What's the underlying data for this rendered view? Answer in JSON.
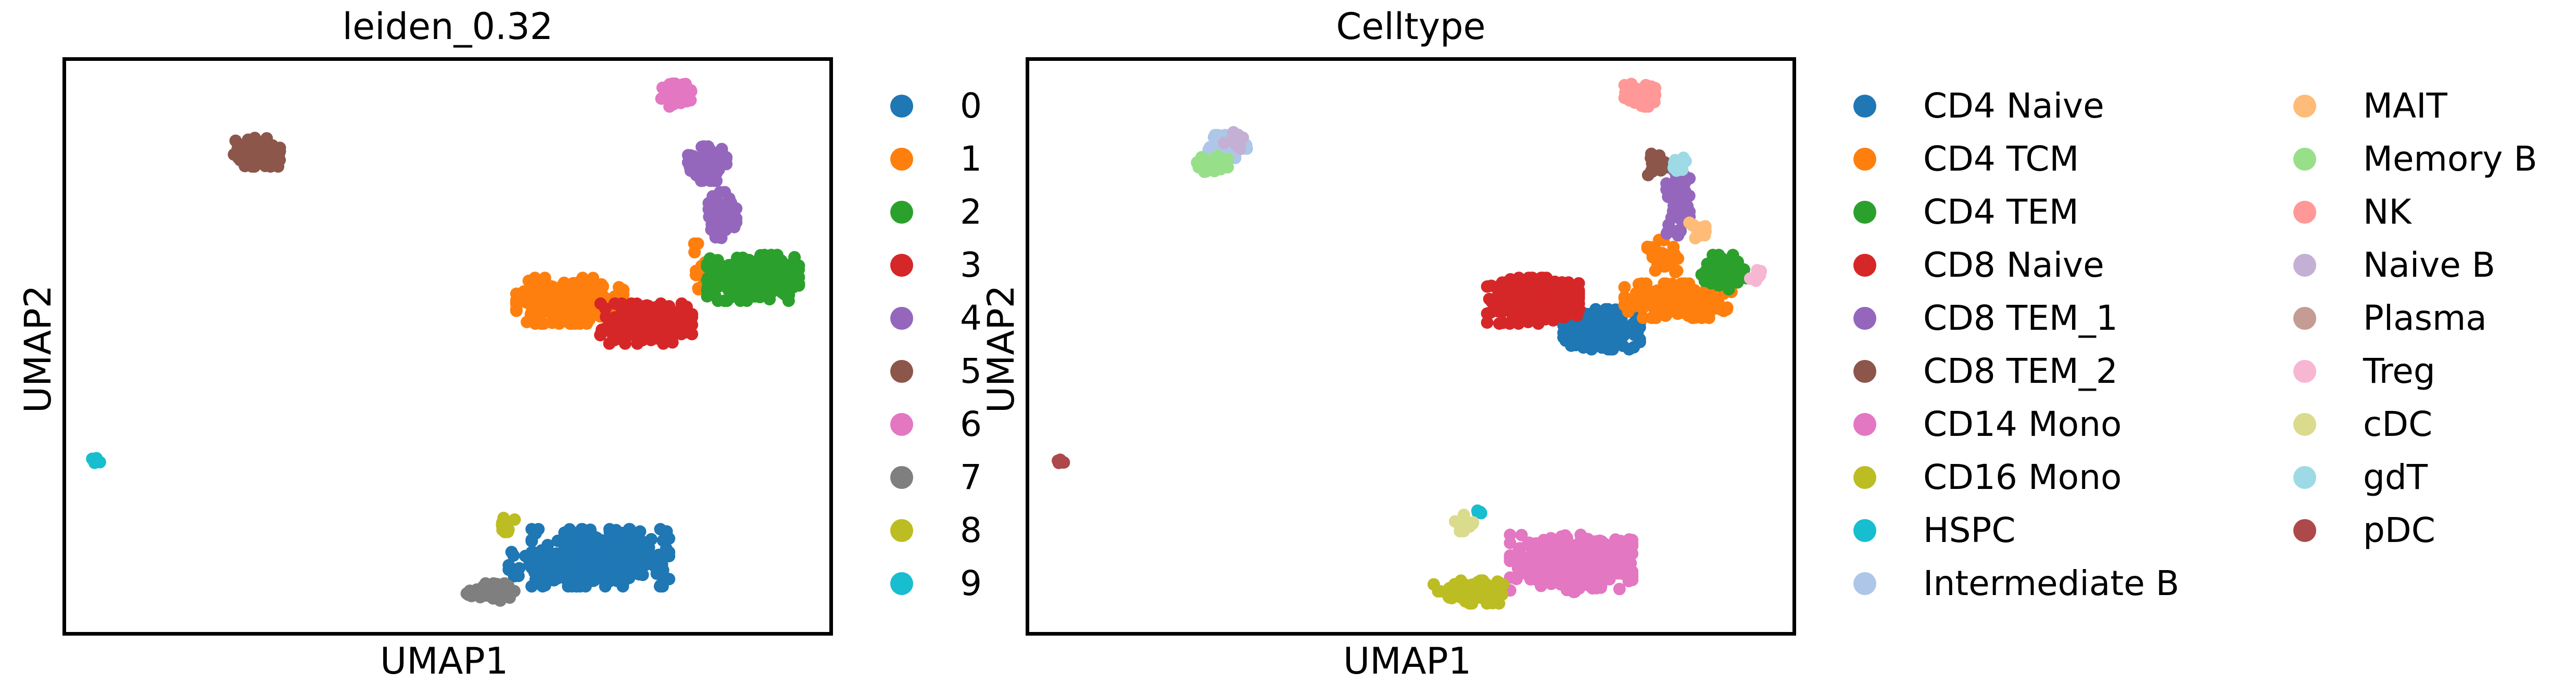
{
  "chart_data": [
    {
      "type": "scatter",
      "title": "leiden_0.32",
      "xlabel": "UMAP1",
      "ylabel": "UMAP2",
      "xlim": [
        0,
        100
      ],
      "ylim": [
        0,
        100
      ],
      "grid": false,
      "legend_placement": "right",
      "series": [
        {
          "name": "0",
          "color": "#1f77b4",
          "clusters": [
            {
              "cx": 70,
              "cy": 13,
              "rx": 9,
              "ry": 5,
              "n": 320
            },
            {
              "cx": 63,
              "cy": 11,
              "rx": 5,
              "ry": 3,
              "n": 80
            }
          ]
        },
        {
          "name": "1",
          "color": "#ff7f0e",
          "clusters": [
            {
              "cx": 66,
              "cy": 58,
              "rx": 7,
              "ry": 4,
              "n": 260
            },
            {
              "cx": 83,
              "cy": 64,
              "rx": 1.5,
              "ry": 4,
              "n": 20
            }
          ]
        },
        {
          "name": "2",
          "color": "#2ca02c",
          "clusters": [
            {
              "cx": 90,
              "cy": 62,
              "rx": 6,
              "ry": 4,
              "n": 220
            }
          ]
        },
        {
          "name": "3",
          "color": "#d62728",
          "clusters": [
            {
              "cx": 76,
              "cy": 54,
              "rx": 6,
              "ry": 3.5,
              "n": 220
            }
          ]
        },
        {
          "name": "4",
          "color": "#9467bd",
          "clusters": [
            {
              "cx": 84,
              "cy": 82,
              "rx": 2.5,
              "ry": 3,
              "n": 90
            },
            {
              "cx": 86,
              "cy": 73,
              "rx": 1.8,
              "ry": 4,
              "n": 60
            }
          ]
        },
        {
          "name": "5",
          "color": "#8c564b",
          "clusters": [
            {
              "cx": 25,
              "cy": 84,
              "rx": 3,
              "ry": 2.5,
              "n": 90
            }
          ]
        },
        {
          "name": "6",
          "color": "#e377c2",
          "clusters": [
            {
              "cx": 80,
              "cy": 94,
              "rx": 2,
              "ry": 2,
              "n": 60
            }
          ]
        },
        {
          "name": "7",
          "color": "#7f7f7f",
          "clusters": [
            {
              "cx": 56,
              "cy": 7,
              "rx": 3.5,
              "ry": 1.5,
              "n": 70
            }
          ]
        },
        {
          "name": "8",
          "color": "#bcbd22",
          "clusters": [
            {
              "cx": 58,
              "cy": 19,
              "rx": 1.2,
              "ry": 1.5,
              "n": 15
            }
          ]
        },
        {
          "name": "9",
          "color": "#17becf",
          "clusters": [
            {
              "cx": 4,
              "cy": 30,
              "rx": 0.6,
              "ry": 0.5,
              "n": 6
            }
          ]
        }
      ]
    },
    {
      "type": "scatter",
      "title": "Celltype",
      "xlabel": "UMAP1",
      "ylabel": "UMAP2",
      "xlim": [
        0,
        100
      ],
      "ylim": [
        0,
        100
      ],
      "grid": false,
      "legend_placement": "right",
      "series": [
        {
          "name": "CD4 Naive",
          "color": "#1f77b4",
          "clusters": [
            {
              "cx": 75,
              "cy": 53,
              "rx": 5,
              "ry": 3.5,
              "n": 200
            }
          ]
        },
        {
          "name": "CD4 TCM",
          "color": "#ff7f0e",
          "clusters": [
            {
              "cx": 85,
              "cy": 58,
              "rx": 7,
              "ry": 3,
              "n": 180
            },
            {
              "cx": 83,
              "cy": 66,
              "rx": 2,
              "ry": 3,
              "n": 30
            }
          ]
        },
        {
          "name": "CD4 TEM",
          "color": "#2ca02c",
          "clusters": [
            {
              "cx": 91,
              "cy": 63,
              "rx": 3,
              "ry": 3,
              "n": 70
            }
          ]
        },
        {
          "name": "CD8 Naive",
          "color": "#d62728",
          "clusters": [
            {
              "cx": 66,
              "cy": 58,
              "rx": 6,
              "ry": 4,
              "n": 250
            }
          ]
        },
        {
          "name": "CD8 TEM_1",
          "color": "#9467bd",
          "clusters": [
            {
              "cx": 85,
              "cy": 75,
              "rx": 1.5,
              "ry": 6,
              "n": 80
            }
          ]
        },
        {
          "name": "CD8 TEM_2",
          "color": "#8c564b",
          "clusters": [
            {
              "cx": 82,
              "cy": 82,
              "rx": 1.5,
              "ry": 2,
              "n": 25
            }
          ]
        },
        {
          "name": "CD14 Mono",
          "color": "#e377c2",
          "clusters": [
            {
              "cx": 71,
              "cy": 12,
              "rx": 8,
              "ry": 5,
              "n": 320
            }
          ]
        },
        {
          "name": "CD16 Mono",
          "color": "#bcbd22",
          "clusters": [
            {
              "cx": 58,
              "cy": 7,
              "rx": 5,
              "ry": 2,
              "n": 80
            }
          ]
        },
        {
          "name": "HSPC",
          "color": "#17becf",
          "clusters": [
            {
              "cx": 59,
              "cy": 21,
              "rx": 0.5,
              "ry": 0.5,
              "n": 4
            }
          ]
        },
        {
          "name": "Intermediate B",
          "color": "#aec7e8",
          "clusters": [
            {
              "cx": 26,
              "cy": 85,
              "rx": 2.5,
              "ry": 2,
              "n": 50
            }
          ]
        },
        {
          "name": "MAIT",
          "color": "#ffbb78",
          "clusters": [
            {
              "cx": 88,
              "cy": 70,
              "rx": 1.5,
              "ry": 2,
              "n": 15
            }
          ]
        },
        {
          "name": "Memory B",
          "color": "#98df8a",
          "clusters": [
            {
              "cx": 24,
              "cy": 82,
              "rx": 2,
              "ry": 1.5,
              "n": 40
            }
          ]
        },
        {
          "name": "NK",
          "color": "#ff9896",
          "clusters": [
            {
              "cx": 80,
              "cy": 94,
              "rx": 2,
              "ry": 2,
              "n": 60
            }
          ]
        },
        {
          "name": "Naive B",
          "color": "#c5b0d5",
          "clusters": [
            {
              "cx": 27,
              "cy": 86,
              "rx": 1.5,
              "ry": 1.5,
              "n": 15
            }
          ]
        },
        {
          "name": "Plasma",
          "color": "#c49c94",
          "clusters": []
        },
        {
          "name": "Treg",
          "color": "#f7b6d2",
          "clusters": [
            {
              "cx": 95,
              "cy": 62,
              "rx": 1,
              "ry": 1.5,
              "n": 8
            }
          ]
        },
        {
          "name": "cDC",
          "color": "#dbdb8d",
          "clusters": [
            {
              "cx": 57,
              "cy": 19,
              "rx": 1.2,
              "ry": 1.5,
              "n": 15
            }
          ]
        },
        {
          "name": "gdT",
          "color": "#9edae5",
          "clusters": [
            {
              "cx": 85,
              "cy": 82,
              "rx": 1,
              "ry": 1.5,
              "n": 12
            }
          ]
        },
        {
          "name": "pDC",
          "color": "#ad494a",
          "clusters": [
            {
              "cx": 4,
              "cy": 30,
              "rx": 0.6,
              "ry": 0.5,
              "n": 6
            }
          ]
        }
      ]
    }
  ]
}
